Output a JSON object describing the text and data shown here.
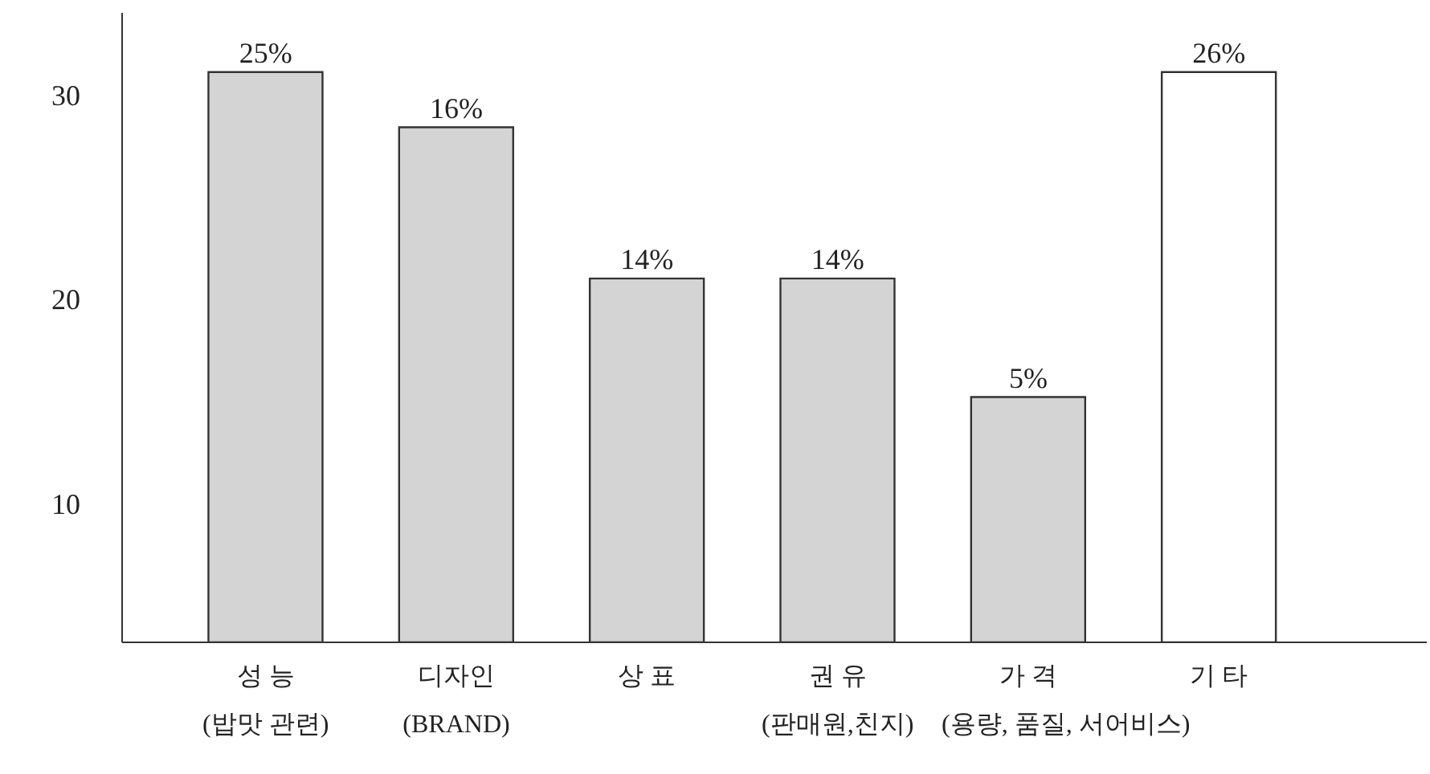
{
  "chart_data": {
    "type": "bar",
    "categories": [
      "성 능\n(밥맛 관련)",
      "디자인\n(BRAND)",
      "상 표",
      "권 유\n(판매원,친지)",
      "가 격\n(용량, 품질, 서어비스)",
      "기 타"
    ],
    "values": [
      31.1,
      28.4,
      21.0,
      21.0,
      15.2,
      31.1
    ],
    "annotations": [
      {
        "text": "25%",
        "x": "성 능\n(밥맛 관련)",
        "y": 31.1
      },
      {
        "text": "16%",
        "x": "디자인\n(BRAND)",
        "y": 28.4
      },
      {
        "text": "14%",
        "x": "상 표",
        "y": 21.0
      },
      {
        "text": "14%",
        "x": "권 유\n(판매원,친지)",
        "y": 21.0
      },
      {
        "text": "5%",
        "x": "가 격\n(용량, 품질, 서어비스)",
        "y": 15.2
      },
      {
        "text": "26%",
        "x": "기 타",
        "y": 31.1
      }
    ],
    "colors": [
      "#d4d4d4",
      "#d4d4d4",
      "#d4d4d4",
      "#d4d4d4",
      "#d4d4d4",
      "#ffffff"
    ],
    "ylim": [
      3.2,
      34
    ],
    "yticks": [
      10,
      20,
      30
    ],
    "grid": false,
    "legend": false
  }
}
